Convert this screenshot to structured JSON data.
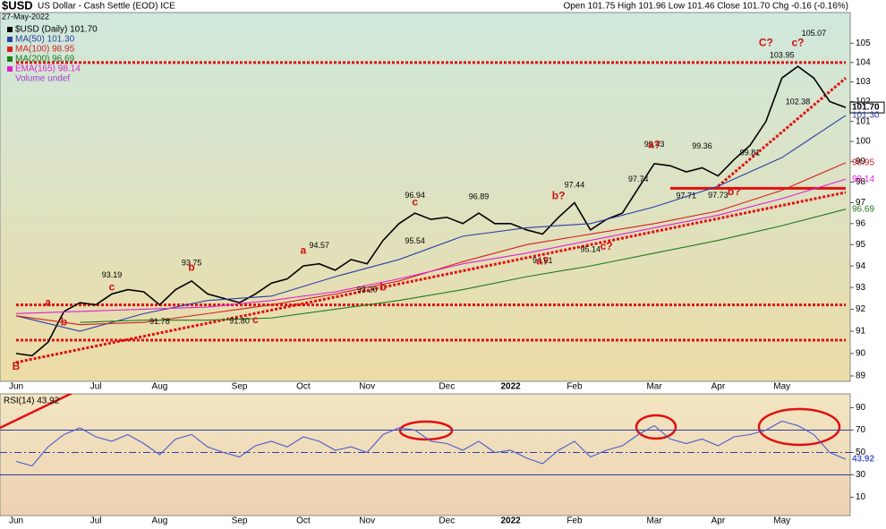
{
  "header": {
    "symbol": "$USD",
    "title": "US Dollar - Cash Settle (EOD) ICE",
    "date": "27-May-2022",
    "quote": "Open 101.75 High 101.96 Low 101.46 Close 101.70 Chg -0.16 (-0.16%)"
  },
  "chart_data": [
    {
      "type": "line",
      "log_scale": true,
      "grid": false,
      "categories": [
        "Jun",
        null,
        null,
        null,
        null,
        "Jul",
        null,
        null,
        null,
        "Aug",
        null,
        null,
        null,
        null,
        "Sep",
        null,
        null,
        null,
        "Oct",
        null,
        null,
        null,
        "Nov",
        null,
        null,
        null,
        null,
        "Dec",
        null,
        null,
        null,
        "2022",
        null,
        null,
        null,
        "Feb",
        null,
        null,
        null,
        null,
        "Mar",
        null,
        null,
        null,
        "Apr",
        null,
        null,
        null,
        "May",
        null,
        null,
        null,
        null
      ],
      "ylim": [
        89,
        106
      ],
      "yticks": [
        89,
        90,
        91,
        92,
        93,
        94,
        95,
        96,
        97,
        98,
        99,
        100,
        101,
        102,
        103,
        104,
        105
      ],
      "series": [
        {
          "name": "$USD (Daily) 101.70",
          "color": "#000000",
          "value_label": "101.70",
          "values": [
            90.0,
            89.9,
            90.5,
            91.9,
            92.3,
            92.2,
            92.7,
            92.9,
            92.8,
            92.2,
            92.9,
            93.3,
            92.7,
            92.5,
            92.3,
            92.7,
            93.2,
            93.4,
            94.0,
            94.1,
            93.8,
            94.3,
            94.1,
            95.2,
            96.0,
            96.5,
            96.2,
            96.3,
            96.0,
            96.5,
            96.0,
            96.0,
            95.7,
            95.5,
            96.3,
            97.0,
            95.7,
            96.2,
            96.5,
            97.7,
            98.9,
            98.8,
            98.5,
            98.7,
            98.3,
            99.1,
            99.8,
            101.0,
            103.2,
            103.8,
            103.2,
            102.0,
            101.7
          ]
        },
        {
          "name": "MA(50) 101.30",
          "color": "#2b3fa8",
          "value_label": "101.30",
          "x": [
            0,
            4,
            8,
            12,
            16,
            20,
            24,
            28,
            32,
            36,
            40,
            44,
            48,
            52
          ],
          "values": [
            91.7,
            91.0,
            91.8,
            92.4,
            92.6,
            93.5,
            94.3,
            95.4,
            95.8,
            96.0,
            96.8,
            97.8,
            99.2,
            101.3
          ]
        },
        {
          "name": "MA(100) 98.95",
          "color": "#d42020",
          "value_label": "98.95",
          "x": [
            0,
            4,
            8,
            12,
            16,
            20,
            24,
            28,
            32,
            36,
            40,
            44,
            48,
            52
          ],
          "values": [
            91.7,
            91.3,
            91.4,
            91.8,
            92.2,
            92.7,
            93.3,
            94.2,
            95.0,
            95.5,
            96.0,
            96.6,
            97.6,
            98.95
          ]
        },
        {
          "name": "MA(200) 96.69",
          "color": "#1f7a1f",
          "value_label": "96.69",
          "x": [
            4,
            8,
            12,
            16,
            20,
            24,
            28,
            32,
            36,
            40,
            44,
            48,
            52
          ],
          "values": [
            91.4,
            91.5,
            91.5,
            91.6,
            92.0,
            92.4,
            92.9,
            93.5,
            94.0,
            94.6,
            95.2,
            95.9,
            96.69
          ]
        },
        {
          "name": "EMA(165) 98.14",
          "color": "#e020d0",
          "value_label": "98.14",
          "x": [
            0,
            4,
            8,
            12,
            16,
            20,
            24,
            28,
            32,
            36,
            40,
            44,
            48,
            52
          ],
          "values": [
            91.8,
            91.9,
            92.0,
            92.1,
            92.4,
            92.8,
            93.4,
            94.1,
            94.6,
            95.2,
            95.8,
            96.4,
            97.2,
            98.14
          ]
        }
      ],
      "legend_note": "Volume undef",
      "peaks": [
        {
          "x": 6,
          "value": 93.19,
          "side": "above"
        },
        {
          "x": 9,
          "value": 91.78,
          "side": "below"
        },
        {
          "x": 11,
          "value": 93.75,
          "side": "above"
        },
        {
          "x": 14,
          "value": {
            "value": 91.8,
            "label": "91.80"
          },
          "side": "below"
        },
        {
          "x": 19,
          "value": 94.57,
          "side": "above"
        },
        {
          "x": 22,
          "value": 93.26,
          "side": "below"
        },
        {
          "x": 25,
          "value": 96.94,
          "side": "above"
        },
        {
          "x": 25,
          "value": 95.54,
          "side": "below"
        },
        {
          "x": 29,
          "value": 96.89,
          "side": "above"
        },
        {
          "x": 33,
          "value": 94.61,
          "side": "below"
        },
        {
          "x": 35,
          "value": 97.44,
          "side": "above"
        },
        {
          "x": 36,
          "value": 95.14,
          "side": "below"
        },
        {
          "x": 39,
          "value": 97.74,
          "side": "above"
        },
        {
          "x": 40,
          "value": 99.43,
          "side": "above"
        },
        {
          "x": 42,
          "value": 97.71,
          "side": "below"
        },
        {
          "x": 43,
          "value": 99.36,
          "side": "above"
        },
        {
          "x": 44,
          "value": 97.73,
          "side": "below"
        },
        {
          "x": 46,
          "value": 99.81,
          "side": "below"
        },
        {
          "x": 48,
          "value": 103.95,
          "side": "above"
        },
        {
          "x": 49,
          "value": 102.38,
          "side": "below"
        },
        {
          "x": 50,
          "value": 105.07,
          "side": "above"
        }
      ],
      "wave_labels": [
        {
          "text": "B",
          "x": 0,
          "value": 89.4
        },
        {
          "text": "a",
          "x": 2,
          "value": 92.3
        },
        {
          "text": "b",
          "x": 3,
          "value": 91.4
        },
        {
          "text": "c",
          "x": 6,
          "value": 93.0
        },
        {
          "text": "b",
          "x": 11,
          "value": 93.9
        },
        {
          "text": "c",
          "x": 15,
          "value": 91.5
        },
        {
          "text": "a",
          "x": 18,
          "value": 94.7
        },
        {
          "text": "b",
          "x": 23,
          "value": 93.0
        },
        {
          "text": "c",
          "x": 25,
          "value": 97.0
        },
        {
          "text": "a?",
          "x": 33,
          "value": 94.2
        },
        {
          "text": "b?",
          "x": 34,
          "value": 97.3
        },
        {
          "text": "c?",
          "x": 37,
          "value": 94.9
        },
        {
          "text": "a?",
          "x": 40,
          "value": 99.8
        },
        {
          "text": "b?",
          "x": 45,
          "value": 97.5
        },
        {
          "text": "C?",
          "x": 47,
          "value": 105.0
        },
        {
          "text": "c?",
          "x": 49,
          "value": 105.0
        }
      ],
      "trendlines": [
        {
          "from": [
            0,
            104
          ],
          "to": [
            52,
            104
          ],
          "style": "dotted"
        },
        {
          "from": [
            0,
            92.2
          ],
          "to": [
            52,
            92.2
          ],
          "style": "dotted"
        },
        {
          "from": [
            0,
            90.6
          ],
          "to": [
            52,
            90.6
          ],
          "style": "dotted"
        },
        {
          "from": [
            0,
            89.6
          ],
          "to": [
            52,
            97.5
          ],
          "style": "dotted"
        },
        {
          "from": [
            44,
            97.8
          ],
          "to": [
            52,
            103.2
          ],
          "style": "dotted"
        },
        {
          "from": [
            41,
            97.7
          ],
          "to": [
            52,
            97.7
          ],
          "style": "solid"
        }
      ]
    },
    {
      "type": "line",
      "title": "RSI(14) 43.92",
      "categories": [
        "Jun",
        null,
        null,
        null,
        null,
        "Jul",
        null,
        null,
        null,
        "Aug",
        null,
        null,
        null,
        null,
        "Sep",
        null,
        null,
        null,
        "Oct",
        null,
        null,
        null,
        "Nov",
        null,
        null,
        null,
        null,
        "Dec",
        null,
        null,
        null,
        "2022",
        null,
        null,
        null,
        "Feb",
        null,
        null,
        null,
        null,
        "Mar",
        null,
        null,
        null,
        "Apr",
        null,
        null,
        null,
        "May",
        null,
        null,
        null,
        null
      ],
      "ylim": [
        0,
        100
      ],
      "yticks": [
        10,
        30,
        50,
        70,
        90
      ],
      "levels": [
        70,
        50,
        30
      ],
      "series": [
        {
          "name": "RSI(14)",
          "color": "#4a5ad0",
          "value_label": "43.92",
          "values": [
            42,
            38,
            55,
            66,
            72,
            64,
            60,
            66,
            58,
            48,
            62,
            66,
            55,
            50,
            46,
            56,
            60,
            55,
            64,
            60,
            52,
            55,
            50,
            66,
            72,
            70,
            60,
            58,
            52,
            60,
            50,
            52,
            45,
            40,
            52,
            60,
            46,
            52,
            56,
            66,
            74,
            62,
            58,
            62,
            56,
            64,
            66,
            70,
            78,
            74,
            66,
            50,
            43.92
          ]
        }
      ]
    }
  ]
}
